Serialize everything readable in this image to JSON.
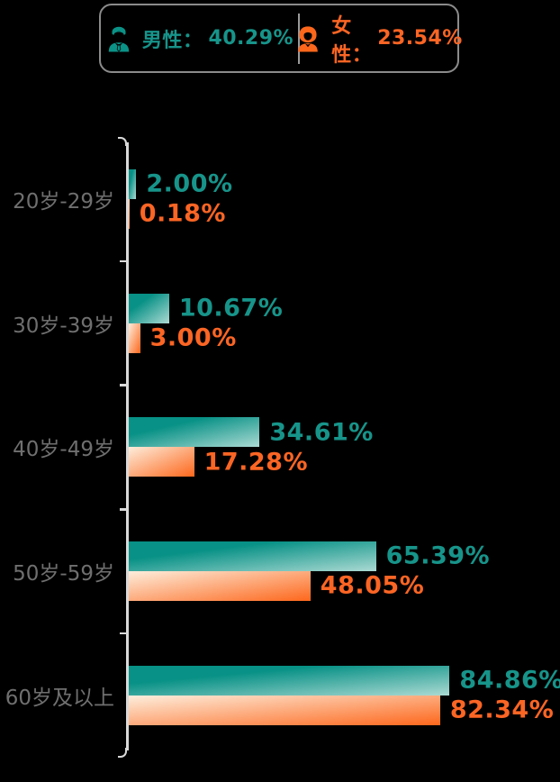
{
  "legend": {
    "male": {
      "label": "男性：",
      "value": "40.29%"
    },
    "female": {
      "label": "女性：",
      "value": "23.54%"
    }
  },
  "chart_data": {
    "type": "bar",
    "orientation": "horizontal",
    "title": "",
    "categories": [
      "20岁-29岁",
      "30岁-39岁",
      "40岁-49岁",
      "50岁-59岁",
      "60岁及以上"
    ],
    "series": [
      {
        "name": "男性",
        "values": [
          2.0,
          10.67,
          34.61,
          65.39,
          84.86
        ],
        "labels": [
          "2.00%",
          "10.67%",
          "34.61%",
          "65.39%",
          "84.86%"
        ]
      },
      {
        "name": "女性",
        "values": [
          0.18,
          3.0,
          17.28,
          48.05,
          82.34
        ],
        "labels": [
          "0.18%",
          "3.00%",
          "17.28%",
          "48.05%",
          "82.34%"
        ]
      }
    ],
    "xlim": [
      0,
      100
    ],
    "legend_position": "top",
    "grid": false
  },
  "colors": {
    "male_solid": "#089186",
    "male_light": "#abdad3",
    "male_text": "#17948a",
    "female_solid": "#fd671c",
    "female_light": "#fdeedd",
    "female_text": "#fb6524",
    "axis": "#d9d9d9",
    "category_text": "#6f6f6f",
    "legend_border": "#8b8b8b",
    "background": "#000000"
  }
}
